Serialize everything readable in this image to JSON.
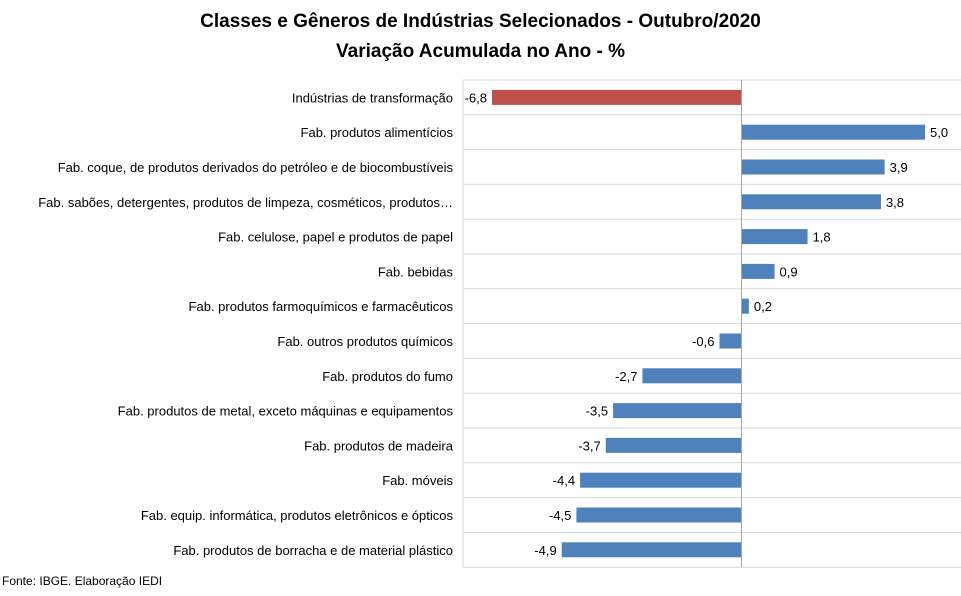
{
  "chart_data": {
    "type": "bar",
    "orientation": "horizontal",
    "title": "Classes e Gêneros de Indústrias Selecionados - Outubro/2020",
    "subtitle": "Variação Acumulada no Ano - %",
    "categories": [
      "Indústrias de transformação",
      "Fab. produtos alimentícios",
      "Fab. coque, de produtos derivados do petróleo e de biocombustíveis",
      "Fab. sabões, detergentes, produtos de limpeza, cosméticos, produtos…",
      "Fab. celulose, papel e produtos de papel",
      "Fab. bebidas",
      "Fab. produtos farmoquímicos e farmacêuticos",
      "Fab. outros produtos químicos",
      "Fab. produtos do fumo",
      "Fab. produtos de metal, exceto máquinas e equipamentos",
      "Fab. produtos de madeira",
      "Fab. móveis",
      "Fab. equip. informática, produtos eletrônicos e ópticos",
      "Fab. produtos de borracha e de material plástico"
    ],
    "values": [
      -6.8,
      5.0,
      3.9,
      3.8,
      1.8,
      0.9,
      0.2,
      -0.6,
      -2.7,
      -3.5,
      -3.7,
      -4.4,
      -4.5,
      -4.9
    ],
    "value_labels": [
      "-6,8",
      "5,0",
      "3,9",
      "3,8",
      "1,8",
      "0,9",
      "0,2",
      "-0,6",
      "-2,7",
      "-3,5",
      "-3,7",
      "-4,4",
      "-4,5",
      "-4,9"
    ],
    "colors": {
      "highlight": "#C0504D",
      "default": "#4F81BD",
      "grid": "#D9D9D9",
      "axis": "#A6A6A6"
    },
    "highlight_index": 0,
    "xlim": [
      -6.8,
      5.0
    ],
    "gridlines": "horizontal row separators",
    "source": "Fonte: IBGE. Elaboração IEDI"
  }
}
